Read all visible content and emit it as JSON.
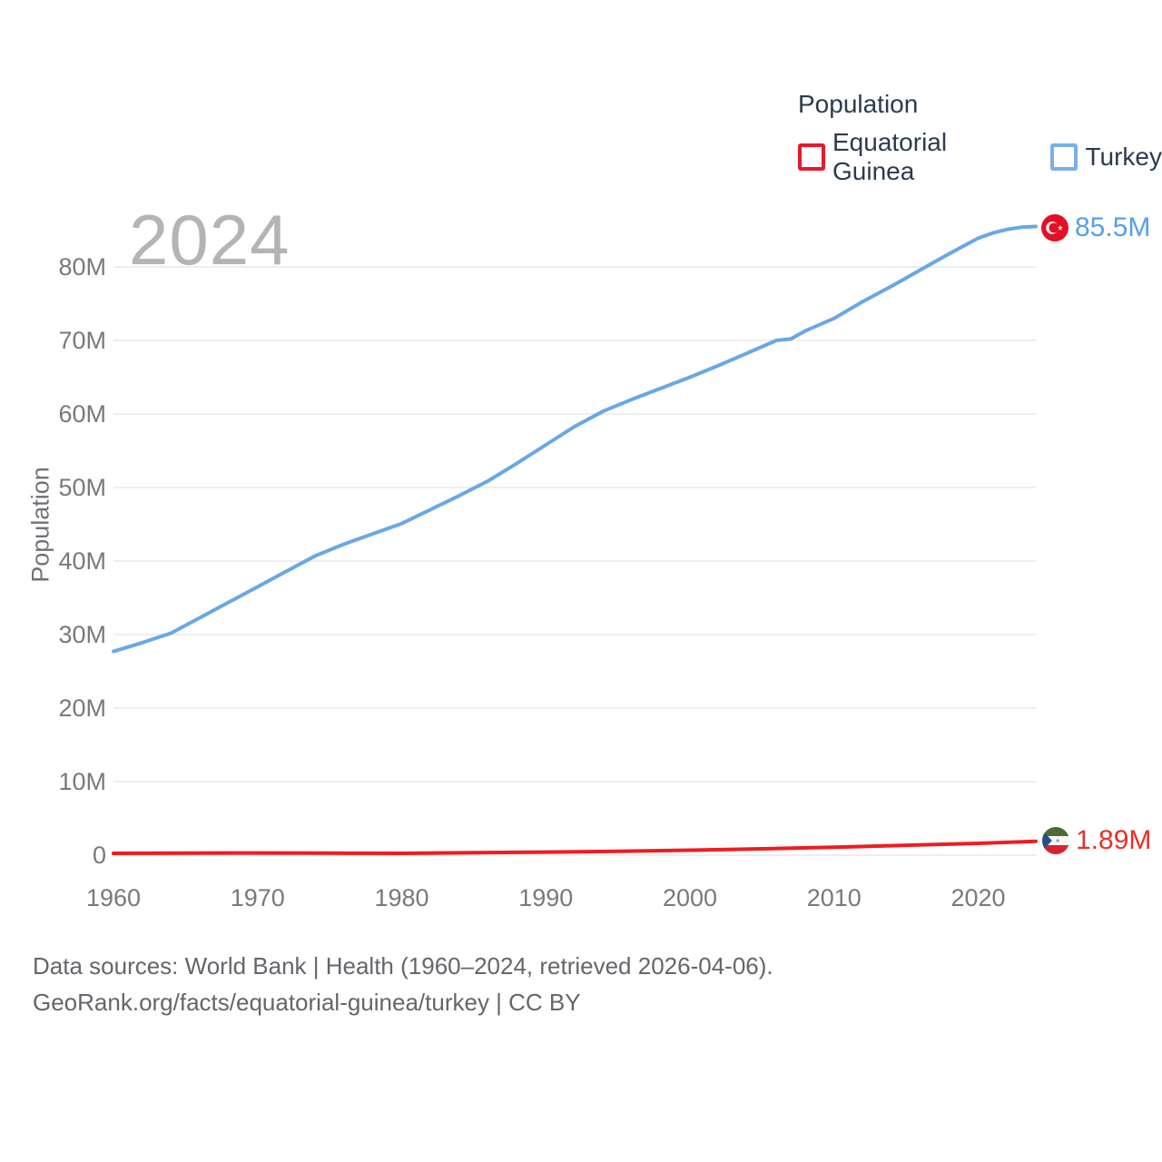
{
  "legend": {
    "title": "Population",
    "items": [
      {
        "label": "Equatorial Guinea",
        "color": "#e8192c"
      },
      {
        "label": "Turkey",
        "color": "#79afe6"
      }
    ]
  },
  "watermark": "2024",
  "end_labels": {
    "turkey": {
      "series": "Turkey",
      "value": "85.5M",
      "color": "#55a0e8"
    },
    "equatorial_guinea": {
      "series": "Equatorial Guinea",
      "value": "1.89M",
      "color": "#ea2e28"
    }
  },
  "footer": {
    "line1": "Data sources: World Bank | Health (1960–2024, retrieved 2026-04-06).",
    "line2": "GeoRank.org/facts/equatorial-guinea/turkey | CC BY"
  },
  "chart_data": {
    "type": "line",
    "title": "Population",
    "xlabel": "",
    "ylabel": "Population",
    "unit": "millions of people",
    "xlim": [
      1960,
      2024
    ],
    "ylim": [
      0,
      87
    ],
    "grid": "horizontal",
    "legend_position": "top-right",
    "xticks": [
      1960,
      1970,
      1980,
      1990,
      2000,
      2010,
      2020
    ],
    "yticks": [
      {
        "value": 0,
        "label": "0"
      },
      {
        "value": 10,
        "label": "10M"
      },
      {
        "value": 20,
        "label": "20M"
      },
      {
        "value": 30,
        "label": "30M"
      },
      {
        "value": 40,
        "label": "40M"
      },
      {
        "value": 50,
        "label": "50M"
      },
      {
        "value": 60,
        "label": "60M"
      },
      {
        "value": 70,
        "label": "70M"
      },
      {
        "value": 80,
        "label": "80M"
      }
    ],
    "series": [
      {
        "name": "Equatorial Guinea",
        "id": "equatorial-guinea",
        "color": "#ee1c21",
        "end_label": "1.89M",
        "x": [
          1960,
          1965,
          1970,
          1975,
          1980,
          1985,
          1990,
          1995,
          2000,
          2005,
          2010,
          2015,
          2020,
          2022,
          2024
        ],
        "values": [
          0.25,
          0.28,
          0.3,
          0.27,
          0.25,
          0.33,
          0.42,
          0.52,
          0.68,
          0.87,
          1.09,
          1.35,
          1.6,
          1.74,
          1.89
        ]
      },
      {
        "name": "Turkey",
        "id": "turkey",
        "color": "#69a7e6",
        "end_label": "85.5M",
        "x": [
          1960,
          1962,
          1964,
          1966,
          1968,
          1970,
          1972,
          1974,
          1976,
          1978,
          1980,
          1982,
          1984,
          1986,
          1988,
          1990,
          1992,
          1994,
          1996,
          1998,
          2000,
          2002,
          2004,
          2006,
          2007,
          2008,
          2010,
          2012,
          2014,
          2016,
          2018,
          2020,
          2021,
          2022,
          2023,
          2024
        ],
        "values": [
          27.7,
          28.9,
          30.2,
          32.3,
          34.4,
          36.5,
          38.6,
          40.7,
          42.3,
          43.7,
          45.1,
          47.0,
          48.9,
          50.9,
          53.3,
          55.8,
          58.3,
          60.4,
          62.0,
          63.5,
          65.0,
          66.6,
          68.3,
          70.0,
          70.2,
          71.3,
          73.0,
          75.3,
          77.4,
          79.6,
          81.8,
          83.9,
          84.6,
          85.1,
          85.4,
          85.5
        ]
      }
    ]
  }
}
